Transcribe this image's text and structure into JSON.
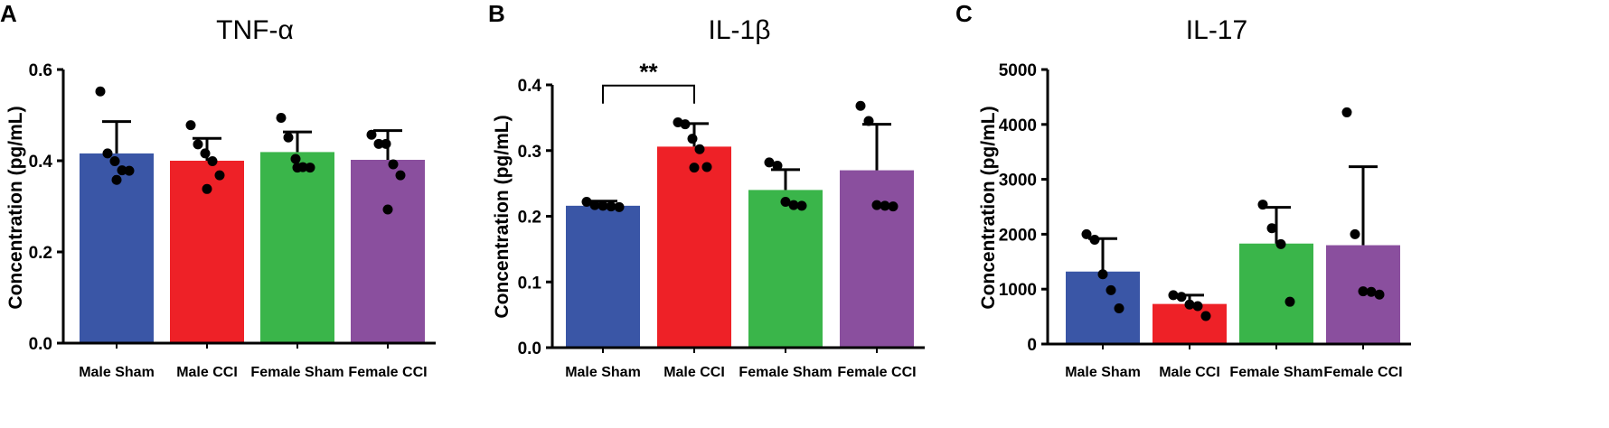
{
  "chart_data": [
    {
      "type": "bar",
      "panel": "A",
      "title": "TNF-α",
      "ylabel": "Concentration (pg/mL)",
      "xlabel": "",
      "ylim": [
        0,
        0.6
      ],
      "yticks": [
        0.0,
        0.2,
        0.4,
        0.6
      ],
      "ytick_labels": [
        "0.0",
        "0.2",
        "0.4",
        "0.6"
      ],
      "categories": [
        "Male Sham",
        "Male CCI",
        "Female Sham",
        "Female CCI"
      ],
      "colors": [
        "#3a56a6",
        "#ee2127",
        "#3ab54a",
        "#8a4f9e"
      ],
      "values": [
        0.416,
        0.4,
        0.419,
        0.402
      ],
      "error_upper": [
        0.486,
        0.449,
        0.463,
        0.466
      ],
      "points": [
        [
          0.552,
          0.416,
          0.399,
          0.379,
          0.378,
          0.358
        ],
        [
          0.478,
          0.436,
          0.416,
          0.399,
          0.368,
          0.338
        ],
        [
          0.494,
          0.451,
          0.404,
          0.386,
          0.385,
          0.385
        ],
        [
          0.457,
          0.437,
          0.437,
          0.392,
          0.368,
          0.293
        ]
      ],
      "significance": []
    },
    {
      "type": "bar",
      "panel": "B",
      "title": "IL-1β",
      "ylabel": "Concentration (pg/mL)",
      "xlabel": "",
      "ylim": [
        0,
        0.4
      ],
      "yticks": [
        0.0,
        0.1,
        0.2,
        0.3,
        0.4
      ],
      "ytick_labels": [
        "0.0",
        "0.1",
        "0.2",
        "0.3",
        "0.4"
      ],
      "categories": [
        "Male Sham",
        "Male CCI",
        "Female Sham",
        "Female CCI"
      ],
      "colors": [
        "#3a56a6",
        "#ee2127",
        "#3ab54a",
        "#8a4f9e"
      ],
      "values": [
        0.216,
        0.306,
        0.24,
        0.27
      ],
      "error_upper": [
        0.223,
        0.341,
        0.271,
        0.34
      ],
      "points": [
        [
          0.222,
          0.217,
          0.216,
          0.215,
          0.214
        ],
        [
          0.343,
          0.34,
          0.318,
          0.302,
          0.275,
          0.274
        ],
        [
          0.282,
          0.277,
          0.222,
          0.217,
          0.216
        ],
        [
          0.368,
          0.345,
          0.217,
          0.216,
          0.215
        ]
      ],
      "significance": [
        {
          "from": 0,
          "to": 1,
          "label": "**",
          "y": 0.41
        }
      ]
    },
    {
      "type": "bar",
      "panel": "C",
      "title": "IL-17",
      "ylabel": "Concentration (pg/mL)",
      "xlabel": "",
      "ylim": [
        0,
        5000
      ],
      "yticks": [
        0,
        1000,
        2000,
        3000,
        4000,
        5000
      ],
      "ytick_labels": [
        "0",
        "1000",
        "2000",
        "3000",
        "4000",
        "5000"
      ],
      "categories": [
        "Male Sham",
        "Male CCI",
        "Female Sham",
        "Female CCI"
      ],
      "colors": [
        "#3a56a6",
        "#ee2127",
        "#3ab54a",
        "#8a4f9e"
      ],
      "values": [
        1320,
        730,
        1830,
        1800
      ],
      "error_upper": [
        1920,
        890,
        2490,
        3230
      ],
      "points": [
        [
          2000,
          1900,
          1270,
          980,
          650
        ],
        [
          890,
          860,
          720,
          690,
          510
        ],
        [
          2540,
          2110,
          1820,
          770
        ],
        [
          4220,
          2000,
          960,
          950,
          900
        ]
      ],
      "significance": []
    }
  ]
}
